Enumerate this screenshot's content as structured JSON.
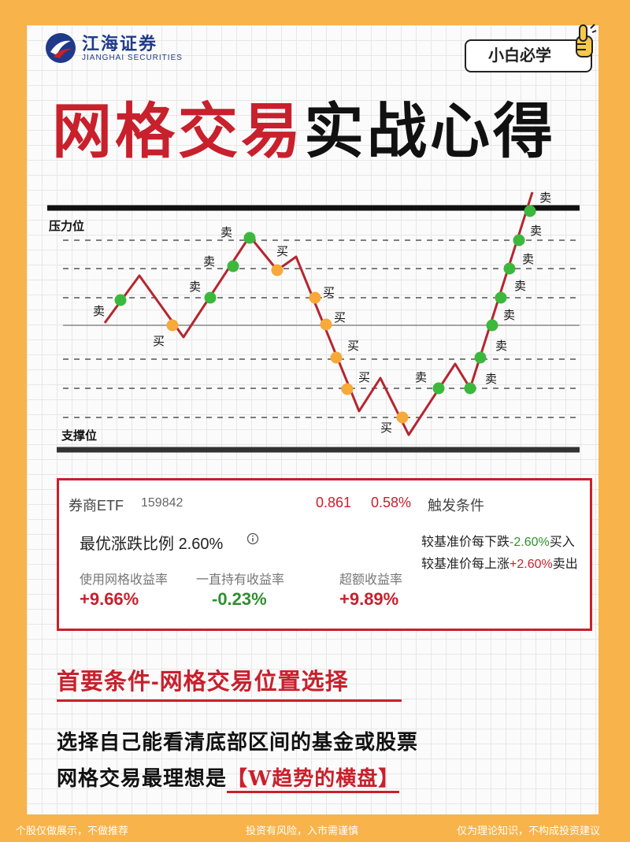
{
  "logo": {
    "cn": "江海证券",
    "en": "JIANGHAI SECURITIES"
  },
  "tag": "小白必学",
  "title": {
    "red": "网格交易",
    "black": "实战心得"
  },
  "chart": {
    "pressure_label": "压力位",
    "support_label": "支撑位",
    "buy": "买",
    "sell": "卖"
  },
  "panel": {
    "name": "券商ETF",
    "code": "159842",
    "price": "0.861",
    "change": "0.58%",
    "trigger_label": "触发条件",
    "ratio_label": "最优涨跌比例",
    "ratio_value": "2.60%",
    "info_icon": "info-icon",
    "rule_buy_prefix": "较基准价每下跌",
    "rule_buy_value": "-2.60%",
    "rule_buy_suffix": "买入",
    "rule_sell_prefix": "较基准价每上涨",
    "rule_sell_value": "+2.60%",
    "rule_sell_suffix": "卖出",
    "stats": [
      {
        "label": "使用网格收益率",
        "value": "+9.66%"
      },
      {
        "label": "一直持有收益率",
        "value": "-0.23%"
      },
      {
        "label": "超额收益率",
        "value": "+9.89%"
      }
    ],
    "colors": {
      "up": "#c8202c",
      "down": "#2f8f2f"
    }
  },
  "section": {
    "heading": "首要条件-网格交易位置选择"
  },
  "body": {
    "line1": "选择自己能看清底部区间的基金或股票",
    "line2_prefix": "网格交易最理想是",
    "line2_highlight": "【W趋势的横盘】"
  },
  "footer": {
    "left": "个股仅做展示，不做推荐",
    "center": "投资有风险，入市需谨慎",
    "right": "仅为理论知识，不构成投资建议"
  }
}
